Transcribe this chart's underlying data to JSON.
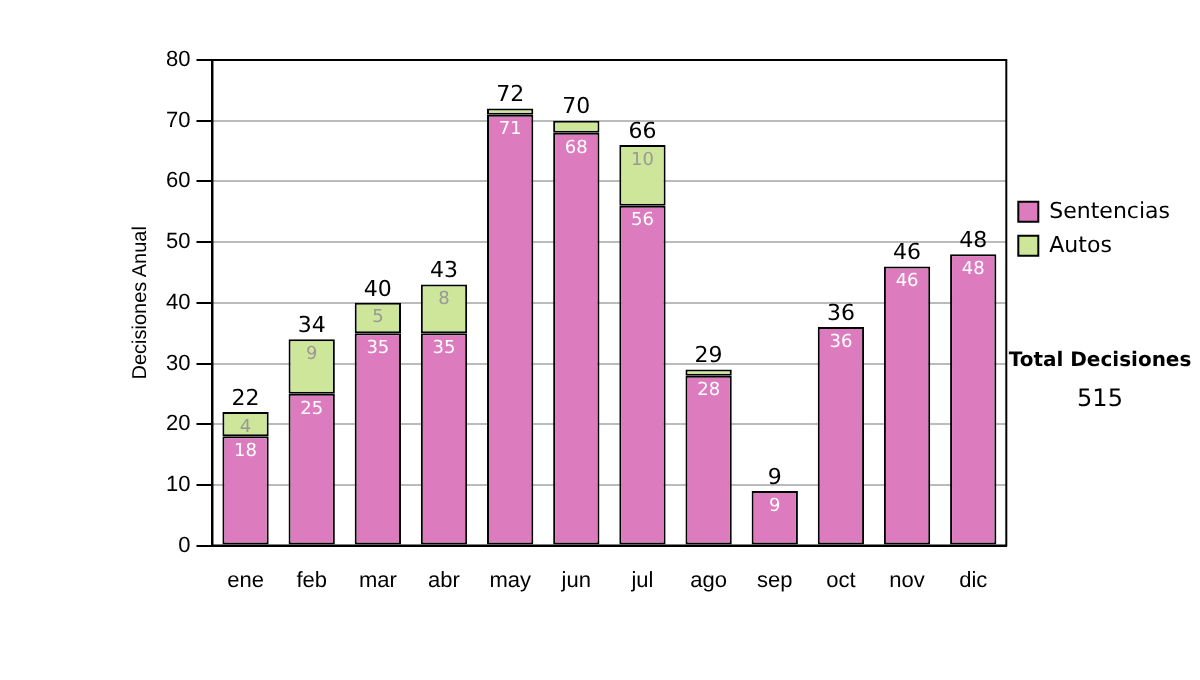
{
  "chart_data": {
    "type": "bar",
    "stacked": true,
    "ylabel": "Decisiones Anual",
    "categories": [
      "ene",
      "feb",
      "mar",
      "abr",
      "may",
      "jun",
      "jul",
      "ago",
      "sep",
      "oct",
      "nov",
      "dic"
    ],
    "series": [
      {
        "name": "Sentencias",
        "color": "#dd7bbf",
        "values": [
          18,
          25,
          35,
          35,
          71,
          68,
          56,
          28,
          9,
          36,
          46,
          48
        ],
        "value_labels": [
          "18",
          "25",
          "35",
          "35",
          "71",
          "68",
          "56",
          "28",
          "9",
          "36",
          "46",
          "48"
        ]
      },
      {
        "name": "Autos",
        "color": "#cde699",
        "values": [
          4,
          9,
          5,
          8,
          1,
          2,
          10,
          1,
          0,
          0,
          0,
          0
        ],
        "value_labels": [
          "4",
          "9",
          "5",
          "8",
          null,
          null,
          "10",
          null,
          null,
          null,
          null,
          null
        ]
      }
    ],
    "totals": [
      "22",
      "34",
      "40",
      "43",
      "72",
      "70",
      "66",
      "29",
      "9",
      "36",
      "46",
      "48"
    ],
    "ylim": [
      0,
      80
    ],
    "yticks": [
      0,
      10,
      20,
      30,
      40,
      50,
      60,
      70,
      80
    ],
    "grid": "y",
    "legend": "right",
    "annotations": [
      "Total Decisiones",
      "515"
    ]
  }
}
